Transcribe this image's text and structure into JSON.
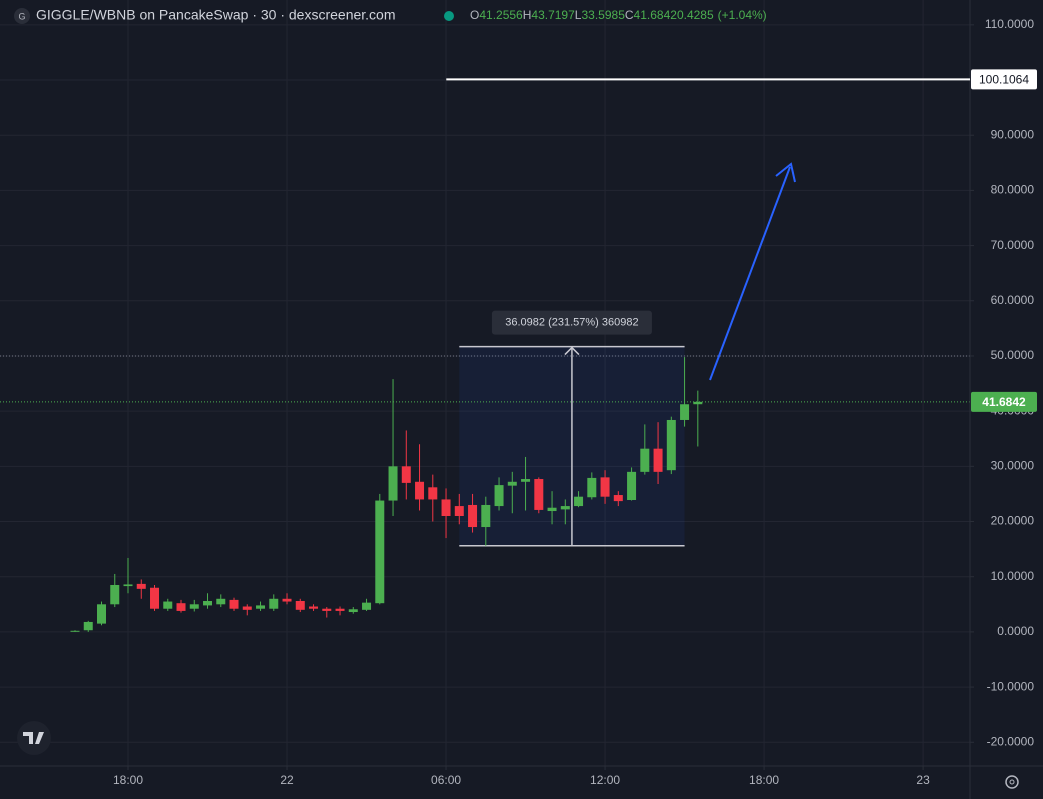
{
  "chart_data": {
    "type": "candlestick",
    "title": "GIGGLE/WBNB on PancakeSwap · 30 · dexscreener.com",
    "ohlc_header": [
      {
        "key": "O",
        "value": "41.2556"
      },
      {
        "key": "H",
        "value": "43.7197"
      },
      {
        "key": "L",
        "value": "33.5985"
      },
      {
        "key": "C",
        "value": "41.6842"
      }
    ],
    "change": "0.4285",
    "change_pct": "(+1.04%)",
    "up_color": "#4caf50",
    "down_color": "#f23645",
    "x": [
      16,
      16.5,
      17,
      17.5,
      18,
      18.5,
      19,
      19.5,
      20,
      20.5,
      21,
      21.5,
      22,
      22.5,
      23,
      23.5,
      24,
      24.5,
      25,
      25.5,
      26,
      26.5,
      27,
      27.5,
      28,
      28.5,
      29,
      29.5,
      30,
      30.5,
      31,
      31.5,
      32,
      32.5,
      33,
      33.5,
      34,
      34.5,
      35,
      35.5,
      36,
      36.5,
      37,
      37.5,
      38,
      38.5,
      39,
      39.5
    ],
    "open": [
      0.1,
      0.3,
      1.5,
      5,
      8.3,
      8.7,
      8,
      4.2,
      5.2,
      4.2,
      4.8,
      5,
      5.8,
      4.6,
      4.2,
      4.2,
      6,
      5.6,
      4.6,
      4.2,
      4.2,
      3.6,
      4,
      5.2,
      23.8,
      30,
      27.2,
      26.2,
      24,
      22.8,
      23,
      19,
      22.8,
      26.5,
      27.2,
      27.7,
      21.9,
      22.2,
      22.8,
      24.4,
      28,
      24.8,
      23.9,
      29,
      33.2,
      29.3,
      38.4,
      41.2556
    ],
    "high": [
      0.3,
      2,
      5.5,
      10.5,
      13.4,
      9.5,
      8.5,
      6,
      5.8,
      5.8,
      7,
      6.8,
      6.2,
      5,
      5.5,
      6.8,
      7,
      6,
      5,
      4.5,
      4.6,
      4.5,
      6,
      25,
      45.8,
      36.5,
      34,
      28.5,
      26,
      25,
      25,
      24.5,
      28,
      29,
      31.7,
      28,
      25.5,
      24,
      25.5,
      28.9,
      29.3,
      25.5,
      29.8,
      37.6,
      38,
      39,
      49.8,
      43.7197
    ],
    "low": [
      0,
      0,
      1.2,
      4.5,
      7,
      6,
      3.8,
      3.8,
      3.5,
      3.7,
      4.2,
      4.5,
      3.8,
      3,
      3.8,
      3.8,
      5,
      3.6,
      3.8,
      2.6,
      3,
      3.3,
      3.8,
      5,
      21,
      24,
      22,
      20,
      17,
      19.5,
      18,
      15.6,
      22,
      21.5,
      22,
      21.5,
      19.5,
      19.5,
      22.6,
      24,
      23.2,
      22.8,
      23.8,
      28.5,
      26.8,
      28.6,
      37.2,
      33.5985
    ],
    "close": [
      0.2,
      1.8,
      5,
      8.5,
      8.6,
      7.8,
      4.2,
      5.5,
      3.8,
      5,
      5.6,
      6,
      4.2,
      4,
      4.8,
      6,
      5.5,
      4,
      4.2,
      3.8,
      3.8,
      4.1,
      5.3,
      23.8,
      30,
      27,
      24,
      24,
      21,
      21,
      19,
      23,
      26.6,
      27.2,
      27.7,
      22.1,
      22.5,
      22.8,
      24.5,
      27.9,
      24.5,
      23.7,
      29,
      33.2,
      29,
      38.4,
      41.25,
      41.6842
    ],
    "xlim": [
      13.17,
      49.77
    ],
    "xticks": [
      {
        "value": 18,
        "label": "18:00"
      },
      {
        "value": 24,
        "label": "22"
      },
      {
        "value": 30,
        "label": "06:00"
      },
      {
        "value": 36,
        "label": "12:00"
      },
      {
        "value": 42,
        "label": "18:00"
      },
      {
        "value": 48,
        "label": "23"
      }
    ],
    "ylim": [
      -24.3,
      114.5
    ],
    "yticks": [
      {
        "value": 110,
        "label": "110.0000"
      },
      {
        "value": 100,
        "label": "100.0000"
      },
      {
        "value": 90,
        "label": "90.0000"
      },
      {
        "value": 80,
        "label": "80.0000"
      },
      {
        "value": 70,
        "label": "70.0000"
      },
      {
        "value": 60,
        "label": "60.0000"
      },
      {
        "value": 50,
        "label": "50.0000"
      },
      {
        "value": 40,
        "label": "40.0000"
      },
      {
        "value": 30,
        "label": "30.0000"
      },
      {
        "value": 20,
        "label": "20.0000"
      },
      {
        "value": 10,
        "label": "10.0000"
      },
      {
        "value": 0,
        "label": "0.0000"
      },
      {
        "value": -10,
        "label": "-10.0000"
      },
      {
        "value": -20,
        "label": "-20.0000"
      }
    ],
    "grid": true,
    "price_line": 100.1064,
    "reference_line": 50,
    "measure": {
      "label": "36.0982 (231.57%) 360982",
      "low": 15.6,
      "high": 51.7,
      "x0": 30.5,
      "x1": 39
    }
  }
}
